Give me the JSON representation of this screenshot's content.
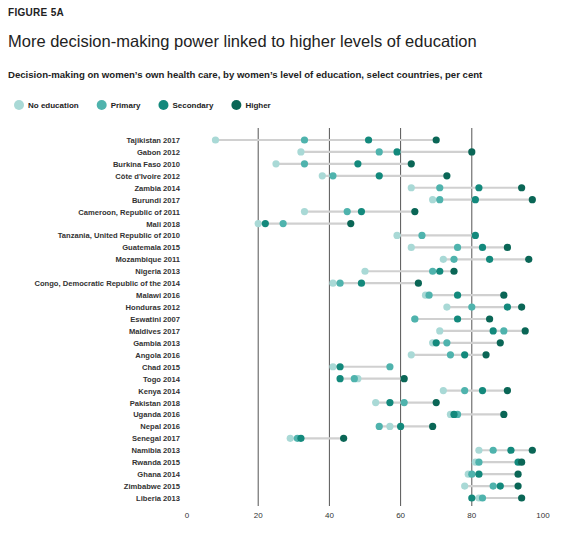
{
  "chart_data": {
    "type": "dot",
    "figure_label": "FIGURE 5A",
    "title": "More decision-making power linked to higher levels of education",
    "subtitle": "Decision-making on women’s own health care, by women’s level of education, select countries, per cent",
    "orientation": "horizontal",
    "grid": true,
    "legend": "top-left",
    "xlim": [
      0,
      100
    ],
    "xticks": [
      0,
      20,
      40,
      60,
      80,
      100
    ],
    "categories": [
      "Tajikistan 2017",
      "Gabon 2012",
      "Burkina Faso 2010",
      "Côte d'Ivoire 2012",
      "Zambia 2014",
      "Burundi 2017",
      "Cameroon, Republic of 2011",
      "Mali 2018",
      "Tanzania, United Republic of 2010",
      "Guatemala 2015",
      "Mozambique 2011",
      "Nigeria 2013",
      "Congo, Democratic Republic of the 2014",
      "Malawi 2016",
      "Honduras 2012",
      "Eswatini 2007",
      "Maldives 2017",
      "Gambia 2013",
      "Angola 2016",
      "Chad 2015",
      "Togo 2014",
      "Kenya 2014",
      "Pakistan 2018",
      "Uganda 2016",
      "Nepal 2016",
      "Senegal 2017",
      "Namibia 2013",
      "Rwanda 2015",
      "Ghana 2014",
      "Zimbabwe 2015",
      "Liberia 2013"
    ],
    "series": [
      {
        "name": "No education",
        "color": "#a9d9d6",
        "values": [
          8,
          32,
          25,
          38,
          63,
          69,
          33,
          20,
          59,
          63,
          72,
          50,
          41,
          67,
          73,
          64,
          71,
          69,
          63,
          41,
          48,
          72,
          53,
          74,
          57,
          29,
          82,
          81,
          79,
          78,
          82
        ]
      },
      {
        "name": "Primary",
        "color": "#4fb3ad",
        "values": [
          33,
          54,
          33,
          41,
          71,
          71,
          45,
          27,
          66,
          76,
          75,
          69,
          43,
          68,
          80,
          64,
          89,
          73,
          74,
          57,
          47,
          78,
          61,
          76,
          54,
          31,
          86,
          82,
          80,
          86,
          83
        ]
      },
      {
        "name": "Secondary",
        "color": "#13897c",
        "values": [
          51,
          59,
          48,
          54,
          82,
          81,
          49,
          22,
          81,
          83,
          85,
          71,
          49,
          76,
          90,
          76,
          86,
          70,
          78,
          43,
          43,
          83,
          57,
          75,
          60,
          32,
          91,
          93,
          82,
          88,
          80
        ]
      },
      {
        "name": "Higher",
        "color": "#0a6656",
        "values": [
          70,
          80,
          63,
          73,
          94,
          97,
          64,
          46,
          null,
          90,
          96,
          75,
          65,
          89,
          94,
          85,
          95,
          88,
          84,
          null,
          61,
          90,
          70,
          89,
          69,
          44,
          97,
          94,
          93,
          93,
          94
        ]
      }
    ]
  }
}
